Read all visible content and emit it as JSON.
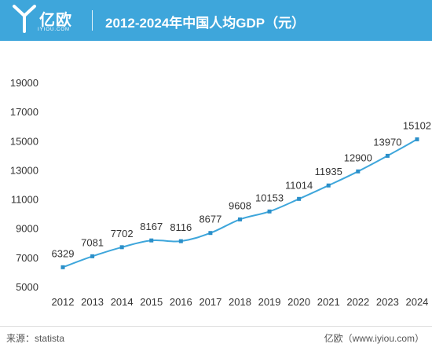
{
  "header": {
    "logo_text": "亿欧",
    "logo_subtext": "IYIOU.COM",
    "title": "2012-2024年中国人均GDP（元）"
  },
  "footer": {
    "source": "来源：statista",
    "brand": "亿欧（www.iyiou.com）"
  },
  "colors": {
    "header_bg": "#3ea6db",
    "line": "#3ea6db",
    "marker": "#2b8fc9"
  },
  "chart_data": {
    "type": "line",
    "title": "2012-2024年中国人均GDP（元）",
    "xlabel": "",
    "ylabel": "",
    "categories": [
      "2012",
      "2013",
      "2014",
      "2015",
      "2016",
      "2017",
      "2018",
      "2019",
      "2020",
      "2021",
      "2022",
      "2023",
      "2024"
    ],
    "values": [
      6329,
      7081,
      7702,
      8167,
      8116,
      8677,
      9608,
      10153,
      11014,
      11935,
      12900,
      13970,
      15102
    ],
    "ylim": [
      5000,
      19000
    ],
    "yticks": [
      5000,
      7000,
      9000,
      11000,
      13000,
      15000,
      17000,
      19000
    ],
    "grid": false,
    "data_labels": true
  }
}
